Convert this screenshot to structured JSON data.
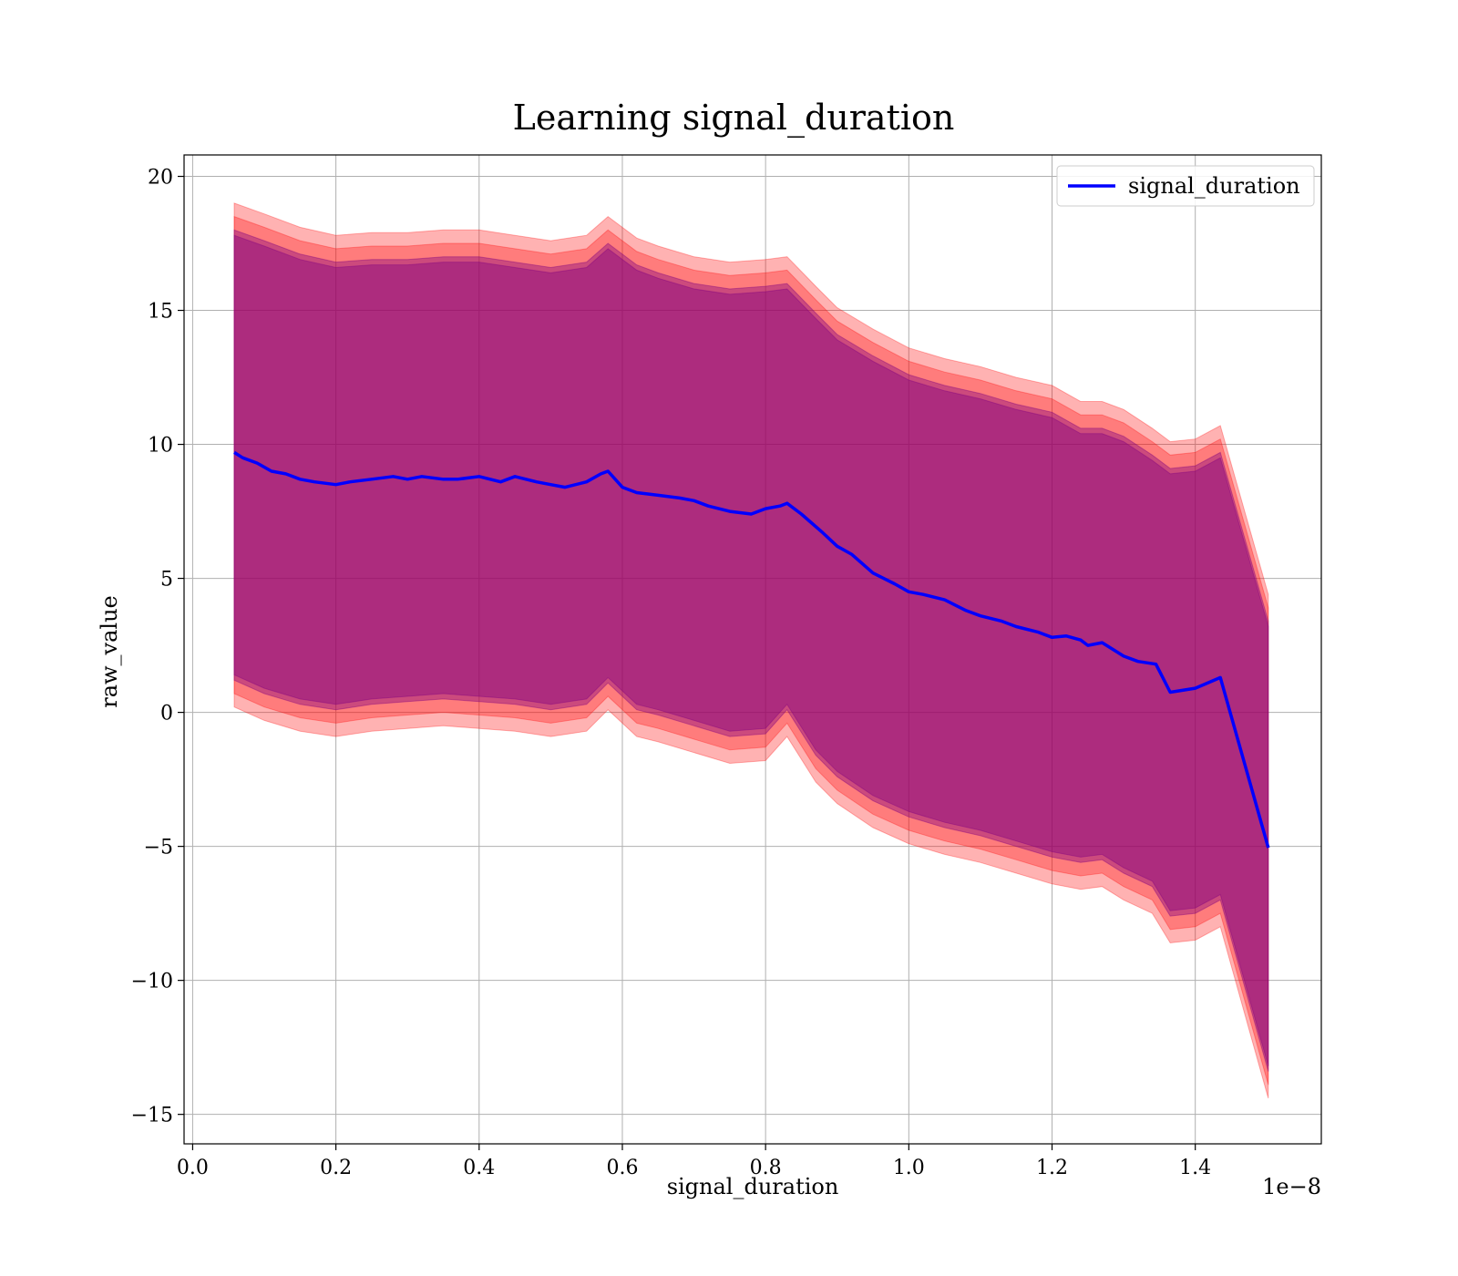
{
  "chart_data": {
    "type": "line",
    "title": "Learning signal_duration",
    "xlabel": "signal_duration",
    "ylabel": "raw_value",
    "x_offset_label": "1e−8",
    "xlim": [
      -0.012,
      1.576
    ],
    "ylim": [
      -16.1,
      20.8
    ],
    "grid": true,
    "legend_position": "top-right",
    "x_ticks": [
      0.0,
      0.2,
      0.4,
      0.6,
      0.8,
      1.0,
      1.2,
      1.4
    ],
    "x_tick_labels": [
      "0.0",
      "0.2",
      "0.4",
      "0.6",
      "0.8",
      "1.0",
      "1.2",
      "1.4"
    ],
    "y_ticks": [
      -15,
      -10,
      -5,
      0,
      5,
      10,
      15,
      20
    ],
    "y_tick_labels": [
      "−15",
      "−10",
      "−5",
      "0",
      "5",
      "10",
      "15",
      "20"
    ],
    "series": [
      {
        "name": "signal_duration",
        "color": "#0000ff",
        "x": [
          0.058,
          0.07,
          0.09,
          0.11,
          0.13,
          0.15,
          0.17,
          0.2,
          0.22,
          0.25,
          0.28,
          0.3,
          0.32,
          0.35,
          0.37,
          0.4,
          0.43,
          0.45,
          0.48,
          0.5,
          0.52,
          0.55,
          0.57,
          0.58,
          0.6,
          0.62,
          0.65,
          0.68,
          0.7,
          0.72,
          0.75,
          0.78,
          0.8,
          0.82,
          0.83,
          0.85,
          0.88,
          0.9,
          0.92,
          0.95,
          0.98,
          1.0,
          1.02,
          1.05,
          1.08,
          1.1,
          1.13,
          1.15,
          1.18,
          1.2,
          1.22,
          1.24,
          1.25,
          1.27,
          1.3,
          1.32,
          1.345,
          1.365,
          1.4,
          1.435,
          1.502
        ],
        "y": [
          9.7,
          9.5,
          9.3,
          9.0,
          8.9,
          8.7,
          8.6,
          8.5,
          8.6,
          8.7,
          8.8,
          8.7,
          8.8,
          8.7,
          8.7,
          8.8,
          8.6,
          8.8,
          8.6,
          8.5,
          8.4,
          8.6,
          8.9,
          9.0,
          8.4,
          8.2,
          8.1,
          8.0,
          7.9,
          7.7,
          7.5,
          7.4,
          7.6,
          7.7,
          7.8,
          7.4,
          6.7,
          6.2,
          5.9,
          5.2,
          4.8,
          4.5,
          4.4,
          4.2,
          3.8,
          3.6,
          3.4,
          3.2,
          3.0,
          2.8,
          2.85,
          2.7,
          2.5,
          2.6,
          2.1,
          1.9,
          1.8,
          0.75,
          0.9,
          1.3,
          -5.05
        ]
      }
    ],
    "bands": [
      {
        "color": "#ff0000",
        "opacity": 0.3,
        "x": [
          0.058,
          0.1,
          0.15,
          0.2,
          0.25,
          0.3,
          0.35,
          0.4,
          0.45,
          0.5,
          0.55,
          0.58,
          0.62,
          0.65,
          0.7,
          0.75,
          0.8,
          0.83,
          0.87,
          0.9,
          0.95,
          1.0,
          1.05,
          1.1,
          1.15,
          1.2,
          1.24,
          1.27,
          1.3,
          1.34,
          1.365,
          1.4,
          1.435,
          1.502
        ],
        "upper": [
          19.0,
          18.6,
          18.1,
          17.8,
          17.9,
          17.9,
          18.0,
          18.0,
          17.8,
          17.6,
          17.8,
          18.5,
          17.7,
          17.4,
          17.0,
          16.8,
          16.9,
          17.0,
          15.9,
          15.1,
          14.3,
          13.6,
          13.2,
          12.9,
          12.5,
          12.2,
          11.6,
          11.6,
          11.3,
          10.6,
          10.1,
          10.2,
          10.7,
          4.4
        ],
        "lower": [
          0.2,
          -0.3,
          -0.7,
          -0.9,
          -0.7,
          -0.6,
          -0.5,
          -0.6,
          -0.7,
          -0.9,
          -0.7,
          0.1,
          -0.9,
          -1.1,
          -1.5,
          -1.9,
          -1.8,
          -0.9,
          -2.6,
          -3.4,
          -4.3,
          -4.9,
          -5.3,
          -5.6,
          -6.0,
          -6.4,
          -6.6,
          -6.5,
          -7.0,
          -7.5,
          -8.6,
          -8.5,
          -8.0,
          -14.4
        ]
      },
      {
        "color": "#ff0000",
        "opacity": 0.3,
        "x": [
          0.058,
          0.1,
          0.15,
          0.2,
          0.25,
          0.3,
          0.35,
          0.4,
          0.45,
          0.5,
          0.55,
          0.58,
          0.62,
          0.65,
          0.7,
          0.75,
          0.8,
          0.83,
          0.87,
          0.9,
          0.95,
          1.0,
          1.05,
          1.1,
          1.15,
          1.2,
          1.24,
          1.27,
          1.3,
          1.34,
          1.365,
          1.4,
          1.435,
          1.502
        ],
        "upper": [
          18.5,
          18.1,
          17.6,
          17.3,
          17.4,
          17.4,
          17.5,
          17.5,
          17.3,
          17.1,
          17.3,
          18.0,
          17.2,
          16.9,
          16.5,
          16.3,
          16.4,
          16.5,
          15.4,
          14.6,
          13.8,
          13.1,
          12.7,
          12.4,
          12.0,
          11.7,
          11.1,
          11.1,
          10.8,
          10.1,
          9.6,
          9.7,
          10.2,
          3.9
        ],
        "lower": [
          0.7,
          0.2,
          -0.2,
          -0.4,
          -0.2,
          -0.1,
          0.0,
          -0.1,
          -0.2,
          -0.4,
          -0.2,
          0.6,
          -0.4,
          -0.6,
          -1.0,
          -1.4,
          -1.3,
          -0.4,
          -2.1,
          -2.9,
          -3.8,
          -4.4,
          -4.8,
          -5.1,
          -5.5,
          -5.9,
          -6.1,
          -6.0,
          -6.5,
          -7.0,
          -8.1,
          -8.0,
          -7.5,
          -13.9
        ]
      },
      {
        "color": "#800080",
        "opacity": 0.4,
        "x": [
          0.058,
          0.1,
          0.15,
          0.2,
          0.25,
          0.3,
          0.35,
          0.4,
          0.45,
          0.5,
          0.55,
          0.58,
          0.62,
          0.65,
          0.7,
          0.75,
          0.8,
          0.83,
          0.87,
          0.9,
          0.95,
          1.0,
          1.05,
          1.1,
          1.15,
          1.2,
          1.24,
          1.27,
          1.3,
          1.34,
          1.365,
          1.4,
          1.435,
          1.502
        ],
        "upper": [
          18.0,
          17.6,
          17.1,
          16.8,
          16.9,
          16.9,
          17.0,
          17.0,
          16.8,
          16.6,
          16.8,
          17.5,
          16.7,
          16.4,
          16.0,
          15.8,
          15.9,
          16.0,
          14.9,
          14.1,
          13.3,
          12.6,
          12.2,
          11.9,
          11.5,
          11.2,
          10.6,
          10.6,
          10.3,
          9.6,
          9.1,
          9.2,
          9.7,
          3.4
        ],
        "lower": [
          1.2,
          0.7,
          0.3,
          0.1,
          0.3,
          0.4,
          0.5,
          0.4,
          0.3,
          0.1,
          0.3,
          1.1,
          0.1,
          -0.1,
          -0.5,
          -0.9,
          -0.8,
          0.1,
          -1.6,
          -2.4,
          -3.3,
          -3.9,
          -4.3,
          -4.6,
          -5.0,
          -5.4,
          -5.6,
          -5.5,
          -6.0,
          -6.5,
          -7.6,
          -7.5,
          -7.0,
          -13.4
        ]
      },
      {
        "color": "#800080",
        "opacity": 0.4,
        "x": [
          0.058,
          0.1,
          0.15,
          0.2,
          0.25,
          0.3,
          0.35,
          0.4,
          0.45,
          0.5,
          0.55,
          0.58,
          0.62,
          0.65,
          0.7,
          0.75,
          0.8,
          0.83,
          0.87,
          0.9,
          0.95,
          1.0,
          1.05,
          1.1,
          1.15,
          1.2,
          1.24,
          1.27,
          1.3,
          1.34,
          1.365,
          1.4,
          1.435,
          1.502
        ],
        "upper": [
          17.8,
          17.4,
          16.9,
          16.6,
          16.7,
          16.7,
          16.8,
          16.8,
          16.6,
          16.4,
          16.6,
          17.3,
          16.5,
          16.2,
          15.8,
          15.6,
          15.7,
          15.8,
          14.7,
          13.9,
          13.1,
          12.4,
          12.0,
          11.7,
          11.3,
          11.0,
          10.4,
          10.4,
          10.1,
          9.4,
          8.9,
          9.0,
          9.5,
          3.2
        ],
        "lower": [
          1.4,
          0.9,
          0.5,
          0.3,
          0.5,
          0.6,
          0.7,
          0.6,
          0.5,
          0.3,
          0.5,
          1.3,
          0.3,
          0.1,
          -0.3,
          -0.7,
          -0.6,
          0.3,
          -1.4,
          -2.2,
          -3.1,
          -3.7,
          -4.1,
          -4.4,
          -4.8,
          -5.2,
          -5.4,
          -5.3,
          -5.8,
          -6.3,
          -7.4,
          -7.3,
          -6.8,
          -13.2
        ]
      }
    ]
  }
}
